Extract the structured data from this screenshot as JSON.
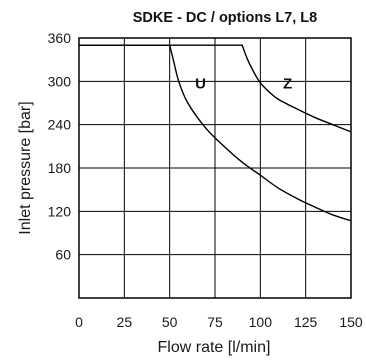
{
  "chart_data": {
    "type": "line",
    "title": "SDKE - DC / options L7, L8",
    "xlabel": "Flow rate [l/min]",
    "ylabel": "Inlet pressure [bar]",
    "xlim": [
      0,
      150
    ],
    "ylim": [
      0,
      360
    ],
    "x_ticks": [
      0,
      25,
      50,
      75,
      100,
      125,
      150
    ],
    "y_ticks": [
      60,
      120,
      180,
      240,
      300,
      360
    ],
    "x_tick_labels": [
      "0",
      "25",
      "50",
      "75",
      "100",
      "125",
      "150"
    ],
    "y_tick_labels": [
      "60",
      "120",
      "180",
      "240",
      "300",
      "360"
    ],
    "grid": true,
    "series": [
      {
        "name": "U",
        "points": [
          [
            0,
            350
          ],
          [
            50,
            350
          ],
          [
            52,
            330
          ],
          [
            55,
            300
          ],
          [
            60,
            270
          ],
          [
            70,
            235
          ],
          [
            80,
            210
          ],
          [
            90,
            188
          ],
          [
            100,
            170
          ],
          [
            110,
            152
          ],
          [
            120,
            138
          ],
          [
            130,
            126
          ],
          [
            140,
            115
          ],
          [
            150,
            107
          ]
        ]
      },
      {
        "name": "Z",
        "points": [
          [
            0,
            350
          ],
          [
            90,
            350
          ],
          [
            93,
            330
          ],
          [
            97,
            310
          ],
          [
            100,
            298
          ],
          [
            105,
            285
          ],
          [
            110,
            275
          ],
          [
            120,
            262
          ],
          [
            130,
            250
          ],
          [
            140,
            240
          ],
          [
            150,
            230
          ]
        ]
      }
    ],
    "annotations": [
      {
        "text": "U",
        "x": 67,
        "y": 290
      },
      {
        "text": "Z",
        "x": 115,
        "y": 290
      }
    ]
  }
}
